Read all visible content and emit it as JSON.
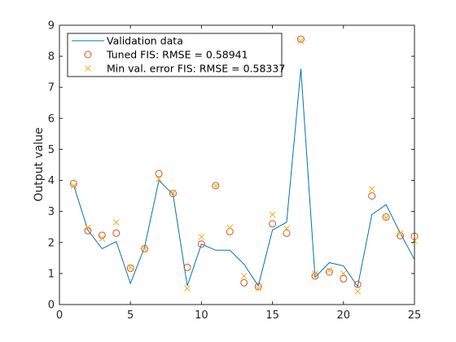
{
  "chart_data": {
    "type": "line",
    "ylabel": "Output value",
    "xlabel": "",
    "xlim": [
      0,
      25
    ],
    "ylim": [
      0,
      9
    ],
    "xticks": [
      0,
      5,
      10,
      15,
      20,
      25
    ],
    "yticks": [
      0,
      1,
      2,
      3,
      4,
      5,
      6,
      7,
      8,
      9
    ],
    "grid": false,
    "legend_position": "top-left",
    "colors": {
      "validation": "#0072BD",
      "tuned": "#D95319",
      "minval": "#EDB120",
      "axis": "#262626"
    },
    "series": [
      {
        "name": "Validation data",
        "marker": "line",
        "x": [
          1,
          2,
          3,
          4,
          5,
          6,
          7,
          8,
          9,
          10,
          11,
          12,
          13,
          14,
          15,
          16,
          17,
          18,
          19,
          20,
          21,
          22,
          23,
          24,
          25
        ],
        "y": [
          3.85,
          2.4,
          1.8,
          2.03,
          0.68,
          1.85,
          4.0,
          3.55,
          0.6,
          1.95,
          1.75,
          1.75,
          1.3,
          0.6,
          2.4,
          2.65,
          7.6,
          0.88,
          1.35,
          1.25,
          0.58,
          2.9,
          3.22,
          2.3,
          1.45
        ]
      },
      {
        "name": "Tuned FIS: RMSE = 0.58941",
        "marker": "circle",
        "x": [
          1,
          2,
          3,
          4,
          5,
          6,
          7,
          8,
          9,
          10,
          11,
          12,
          13,
          14,
          15,
          16,
          17,
          18,
          19,
          20,
          21,
          22,
          23,
          24,
          25
        ],
        "y": [
          3.9,
          2.38,
          2.23,
          2.3,
          1.17,
          1.8,
          4.22,
          3.58,
          1.2,
          1.95,
          3.83,
          2.35,
          0.7,
          0.58,
          2.6,
          2.3,
          8.55,
          0.92,
          1.05,
          0.83,
          0.65,
          3.5,
          2.82,
          2.22,
          2.2
        ]
      },
      {
        "name": "Min val. error FIS: RMSE = 0.58337",
        "marker": "x",
        "x": [
          1,
          2,
          3,
          4,
          5,
          6,
          7,
          8,
          9,
          10,
          11,
          12,
          13,
          14,
          15,
          16,
          17,
          18,
          19,
          20,
          21,
          22,
          23,
          24,
          25
        ],
        "y": [
          3.82,
          2.48,
          2.13,
          2.65,
          1.2,
          1.8,
          4.05,
          3.6,
          0.52,
          2.18,
          3.82,
          2.48,
          0.92,
          0.52,
          2.9,
          2.45,
          8.5,
          1.0,
          1.1,
          1.0,
          0.42,
          3.72,
          2.8,
          2.3,
          2.05
        ]
      }
    ]
  }
}
